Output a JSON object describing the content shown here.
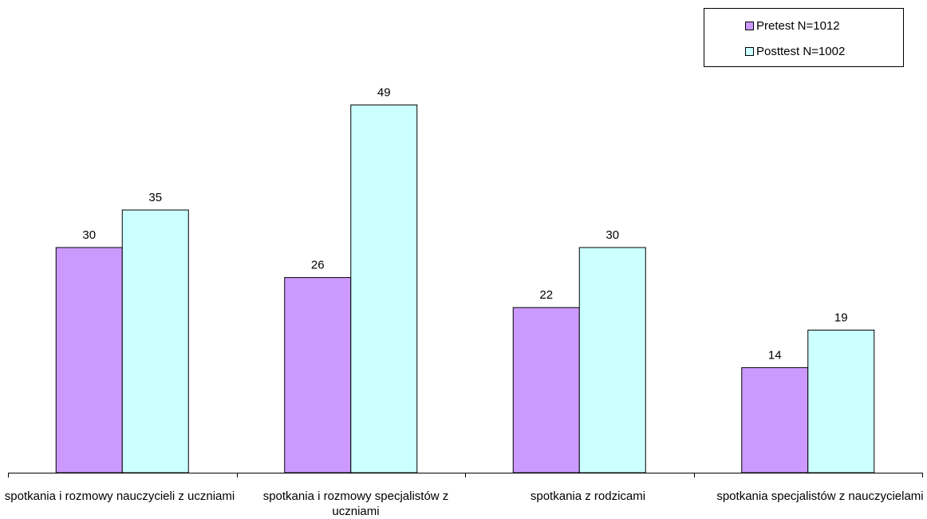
{
  "chart_data": {
    "type": "bar",
    "categories": [
      "spotkania i rozmowy nauczycieli z uczniami",
      "spotkania i rozmowy specjalistów z uczniami",
      "spotkania z rodzicami",
      "spotkania specjalistów z nauczycielami"
    ],
    "series": [
      {
        "name": "Pretest N=1012",
        "color": "#cc99ff",
        "values": [
          30,
          26,
          22,
          14
        ]
      },
      {
        "name": "Posttest N=1002",
        "color": "#ccffff",
        "values": [
          35,
          49,
          30,
          19
        ]
      }
    ],
    "ylim": [
      0,
      55
    ],
    "grid": false,
    "legend_position": "top-right",
    "data_labels": true
  }
}
